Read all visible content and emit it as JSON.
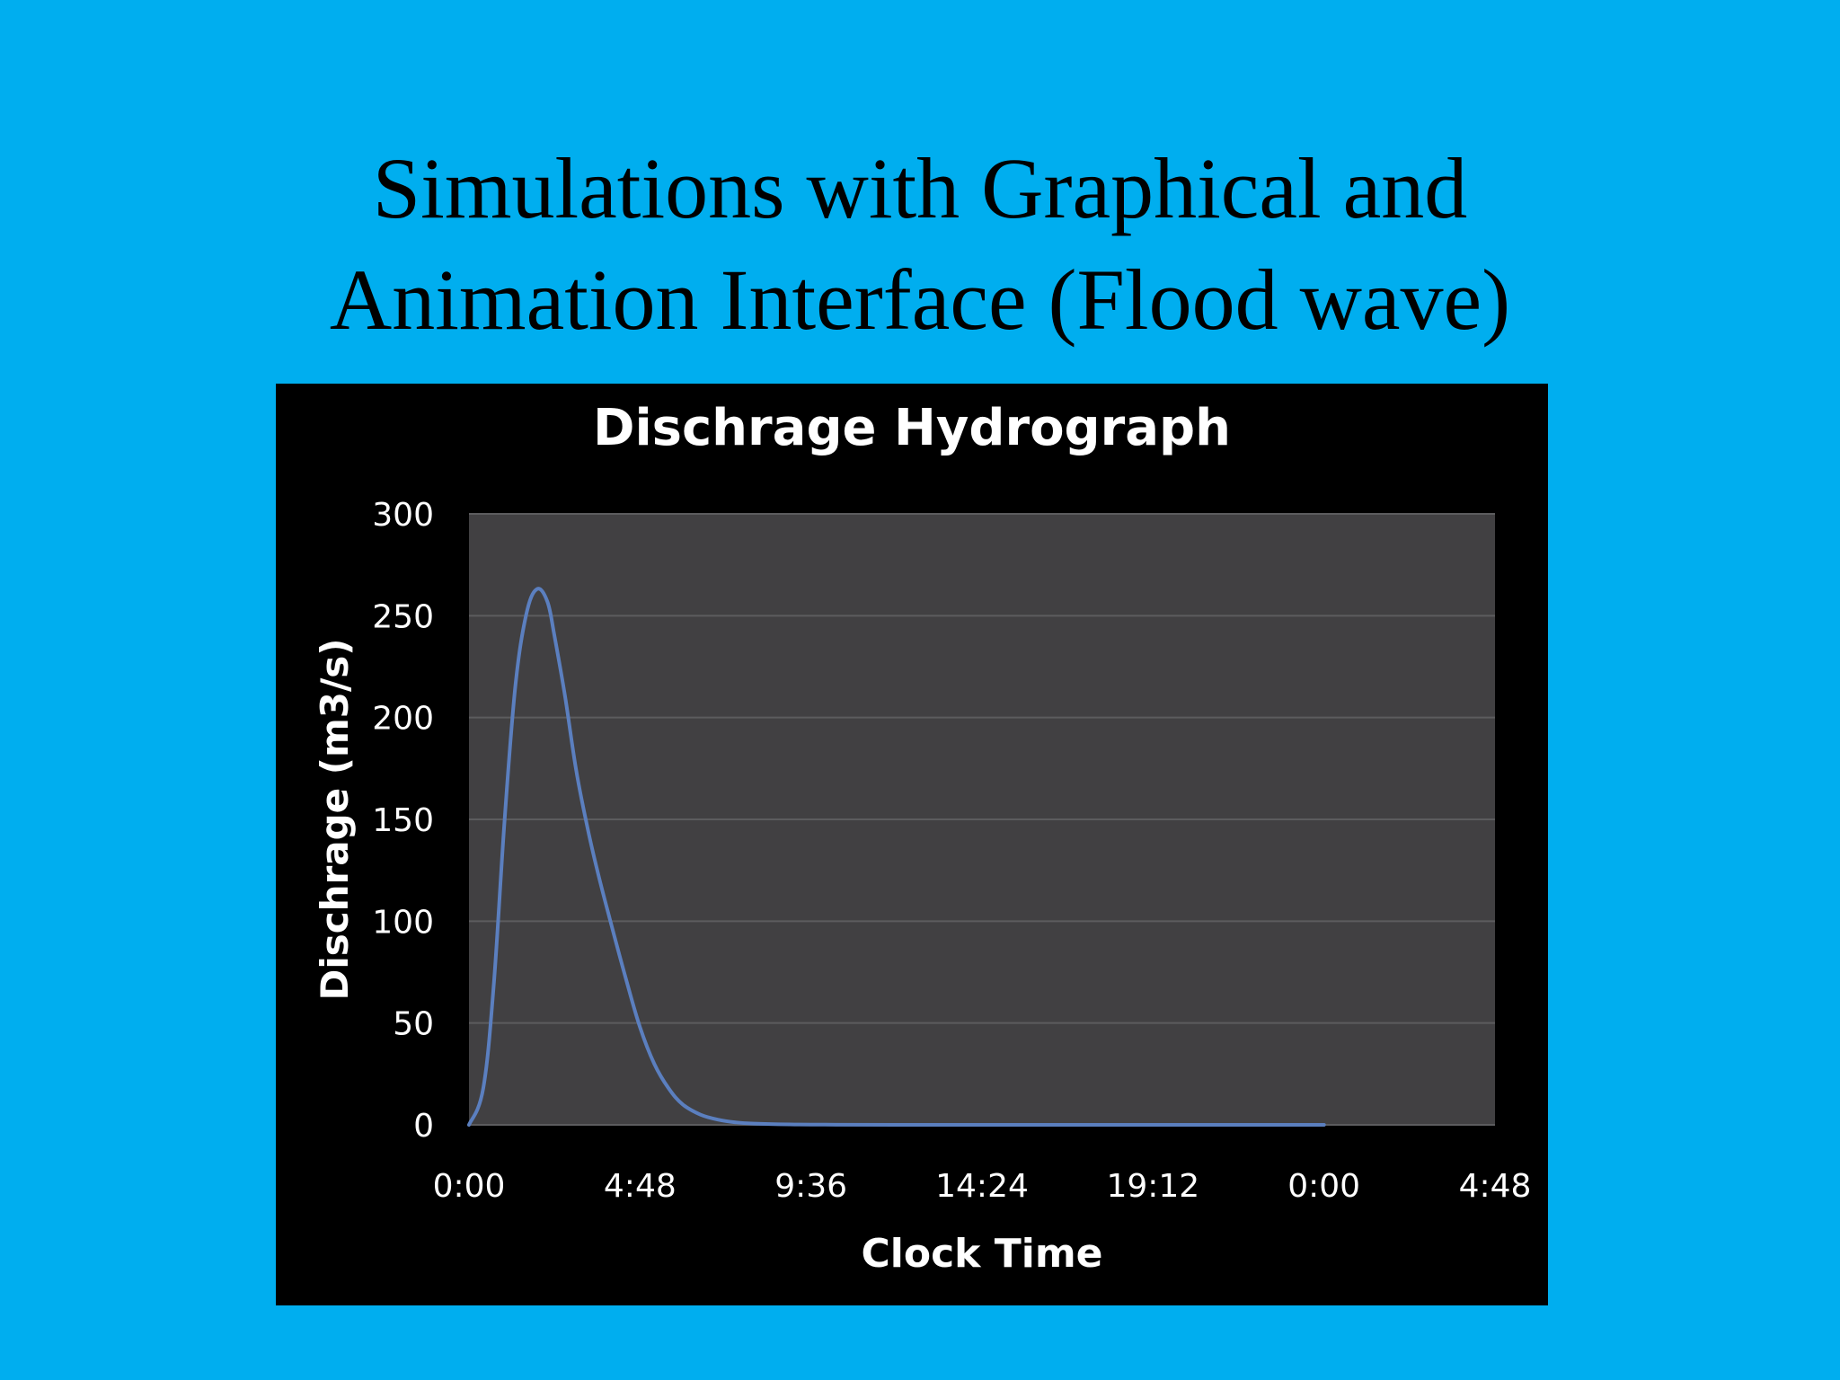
{
  "slide": {
    "title_line1": "Simulations with Graphical and",
    "title_line2": "Animation Interface (Flood wave)",
    "background_color": "#00AEEF",
    "title_color": "#000000",
    "panel_color": "#000000",
    "plot_area_color": "#414042",
    "gridline_color": "#5c5c5e",
    "text_color": "#FFFFFF",
    "series_color": "#5B7FBF"
  },
  "chart_data": {
    "type": "line",
    "title": "Dischrage Hydrograph",
    "xlabel": "Clock Time",
    "ylabel": "Dischrage (m3/s)",
    "xlim_hours": [
      0,
      28.8
    ],
    "ylim": [
      0,
      300
    ],
    "grid": true,
    "y_ticks": [
      "0",
      "50",
      "100",
      "150",
      "200",
      "250",
      "300"
    ],
    "x_tick_hours": [
      0,
      4.8,
      9.6,
      14.4,
      19.2,
      24,
      28.8
    ],
    "x_ticks": [
      "0:00",
      "4:48",
      "9:36",
      "14:24",
      "19:12",
      "0:00",
      "4:48"
    ],
    "series": [
      {
        "hours": [
          0,
          0.4,
          0.7,
          1.0,
          1.3,
          1.6,
          1.9,
          2.2,
          2.4,
          2.7,
          3.0,
          3.3,
          3.6,
          4.0,
          4.4,
          4.8,
          5.2,
          5.6,
          6.0,
          6.5,
          7.0,
          7.5,
          8.0,
          9.0,
          10.0,
          12.0,
          16.0,
          20.0,
          24.0
        ],
        "values": [
          0,
          18,
          70,
          150,
          215,
          250,
          263,
          257,
          240,
          210,
          175,
          148,
          125,
          98,
          72,
          48,
          30,
          18,
          10,
          5,
          2.5,
          1.2,
          0.6,
          0.2,
          0.1,
          0,
          0,
          0,
          0
        ]
      }
    ]
  }
}
